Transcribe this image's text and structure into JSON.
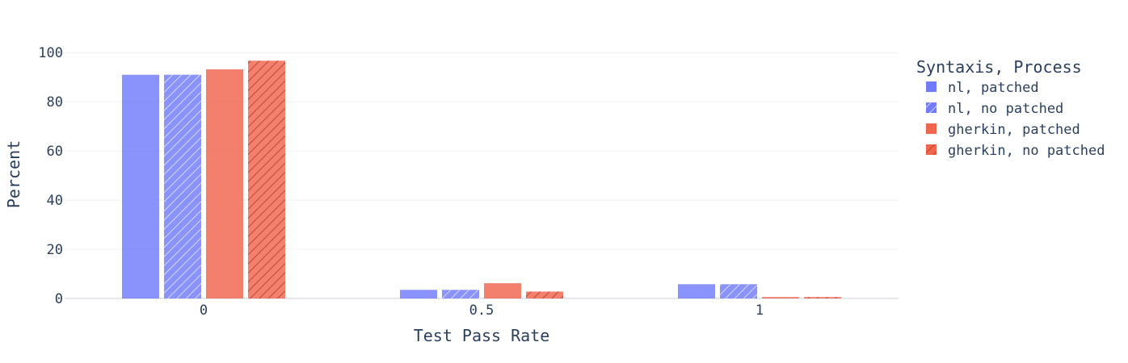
{
  "chart_data": {
    "type": "bar",
    "xlabel": "Test Pass Rate",
    "ylabel": "Percent",
    "categories": [
      "0",
      "0.5",
      "1"
    ],
    "ylim": [
      0,
      105
    ],
    "yticks": [
      0,
      20,
      40,
      60,
      80,
      100
    ],
    "grid": true,
    "legend_title": "Syntaxis, Process",
    "legend_position": "right",
    "series": [
      {
        "name": "nl, patched",
        "values": [
          91,
          3.5,
          5.8
        ],
        "color": "#636efa",
        "pattern": "none"
      },
      {
        "name": "nl, no patched",
        "values": [
          91,
          3.5,
          5.8
        ],
        "color": "#636efa",
        "pattern": "hatch"
      },
      {
        "name": "gherkin, patched",
        "values": [
          93.2,
          6.2,
          0.6
        ],
        "color": "#ef553b",
        "pattern": "none"
      },
      {
        "name": "gherkin, no patched",
        "values": [
          96.7,
          2.8,
          0.6
        ],
        "color": "#ef553b",
        "pattern": "hatch"
      }
    ]
  }
}
